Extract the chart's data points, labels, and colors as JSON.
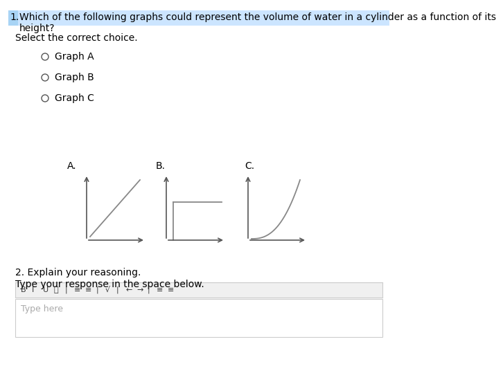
{
  "title_text": "1. Which of the following graphs could represent the volume of water in a cylinder as a function of its\nheight?",
  "subtitle": "Select the correct choice.",
  "graph_labels": [
    "A.",
    "B.",
    "C."
  ],
  "radio_options": [
    "Graph A",
    "Graph B",
    "Graph C"
  ],
  "question2": "2. Explain your reasoning.",
  "question2_sub": "Type your response in the space below.",
  "bg_color": "#ffffff",
  "text_color": "#000000",
  "axis_color": "#555555",
  "curve_color": "#888888",
  "title_highlight": "#cce5ff",
  "toolbar_items": [
    "B",
    "I",
    "U",
    "□",
    "|",
    "☰",
    "≡",
    "|",
    "√",
    "|",
    "←",
    "→",
    "|",
    "≡",
    "≡"
  ],
  "font_size_title": 10,
  "font_size_labels": 10,
  "font_size_options": 10
}
